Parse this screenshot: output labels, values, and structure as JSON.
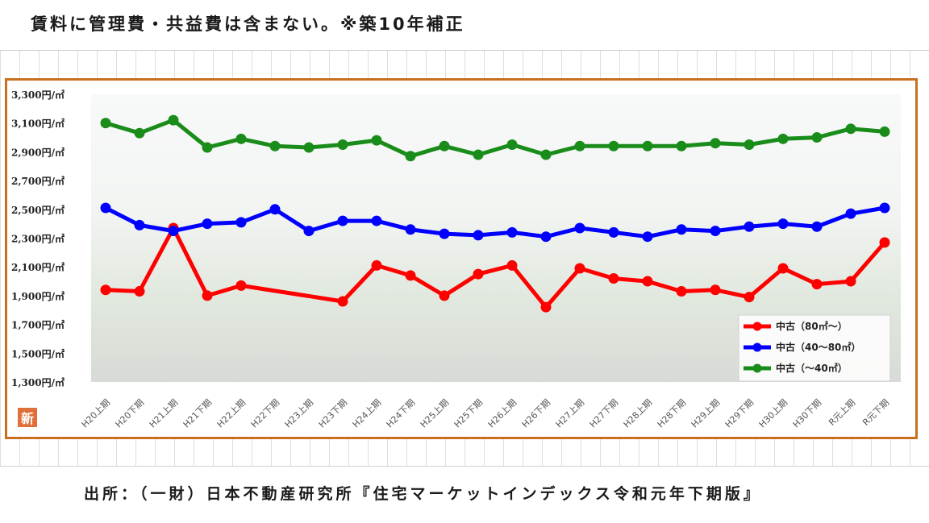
{
  "header": {
    "text": "賃料に管理費・共益費は含まない。※築10年補正"
  },
  "footer": {
    "source": "出所：（一財）日本不動産研究所『住宅マーケットインデックス令和元年下期版』"
  },
  "badge": {
    "label": "新"
  },
  "chart_data": {
    "type": "line",
    "title": "",
    "xlabel": "",
    "ylabel": "",
    "ylim": [
      1300,
      3300
    ],
    "yticks": [
      1300,
      1500,
      1700,
      1900,
      2100,
      2300,
      2500,
      2700,
      2900,
      3100,
      3300
    ],
    "ytick_labels": [
      "1,300円/㎡",
      "1,500円/㎡",
      "1,700円/㎡",
      "1,900円/㎡",
      "2,100円/㎡",
      "2,300円/㎡",
      "2,500円/㎡",
      "2,700円/㎡",
      "2,900円/㎡",
      "3,100円/㎡",
      "3,300円/㎡"
    ],
    "categories": [
      "H20上期",
      "H20下期",
      "H21上期",
      "H21下期",
      "H22上期",
      "H22下期",
      "H23上期",
      "H23下期",
      "H24上期",
      "H24下期",
      "H25上期",
      "H25下期",
      "H26上期",
      "H26下期",
      "H27上期",
      "H27下期",
      "H28上期",
      "H28下期",
      "H29上期",
      "H29下期",
      "H30上期",
      "H30下期",
      "R元上期",
      "R元下期"
    ],
    "grid": false,
    "legend_position": "bottom-right",
    "series": [
      {
        "name": "中古（80㎡～）",
        "color": "#ff0000",
        "values": [
          1940,
          1930,
          2370,
          1900,
          1970,
          null,
          null,
          1860,
          2110,
          2040,
          1900,
          2050,
          2110,
          1820,
          2090,
          2020,
          2000,
          1930,
          1940,
          1890,
          2090,
          1980,
          2000,
          2270
        ]
      },
      {
        "name": "中古（40～80㎡）",
        "color": "#0000ff",
        "values": [
          2510,
          2390,
          2350,
          2400,
          2410,
          2500,
          2350,
          2420,
          2420,
          2360,
          2330,
          2320,
          2340,
          2310,
          2370,
          2340,
          2310,
          2360,
          2350,
          2380,
          2400,
          2380,
          2470,
          2510
        ]
      },
      {
        "name": "中古（～40㎡）",
        "color": "#1a8c1a",
        "values": [
          3100,
          3030,
          3120,
          2930,
          2990,
          2940,
          2930,
          2950,
          2980,
          2870,
          2940,
          2880,
          2950,
          2880,
          2940,
          2940,
          2940,
          2940,
          2960,
          2950,
          2990,
          3000,
          3060,
          3040
        ]
      }
    ]
  }
}
